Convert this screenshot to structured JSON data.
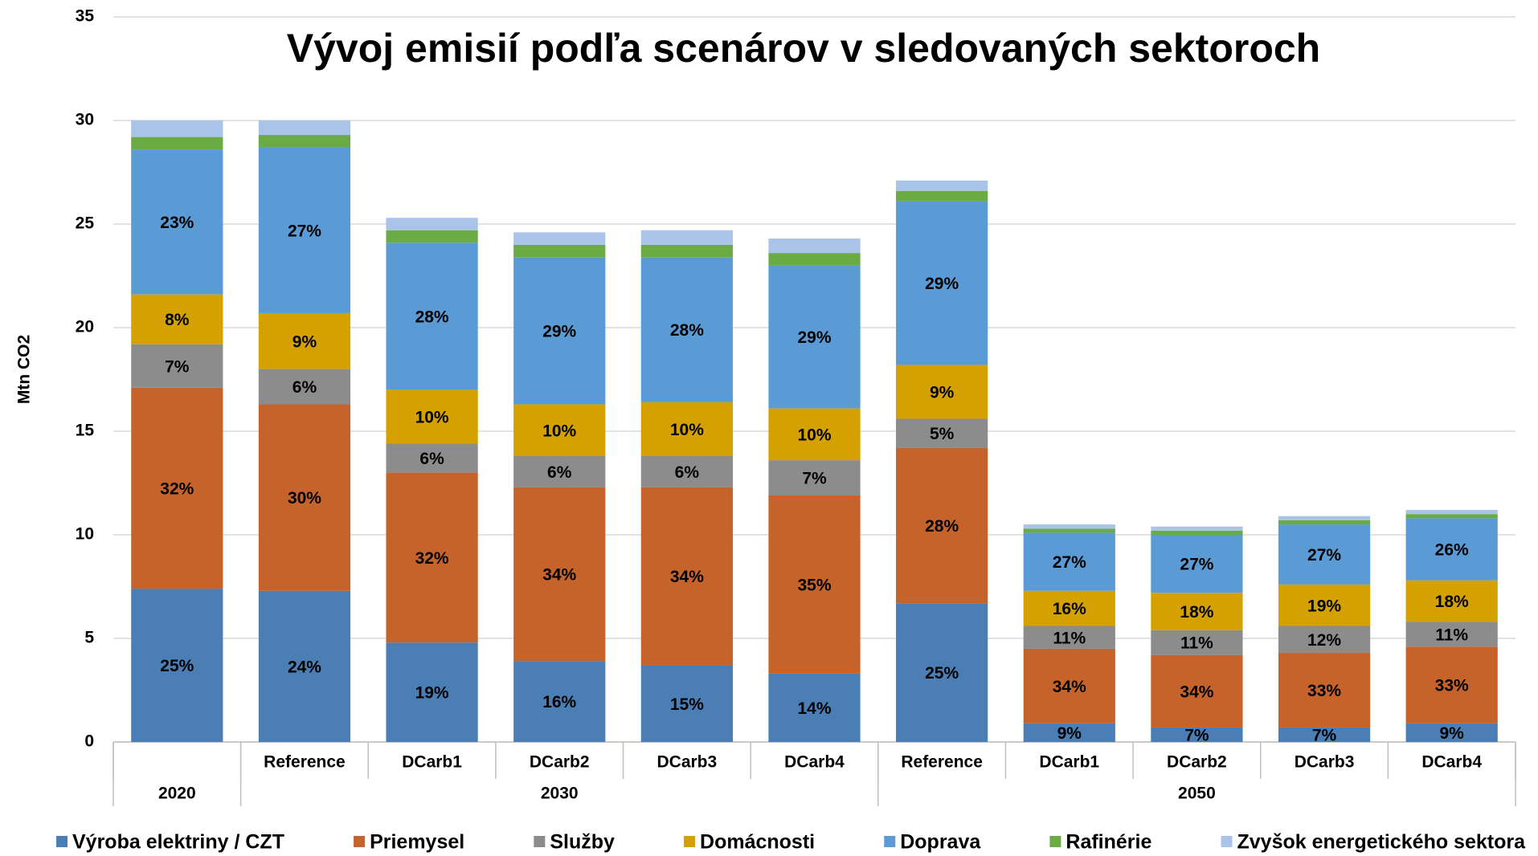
{
  "chart_data": {
    "type": "stacked-bar",
    "title": "Vývoj emisií podľa scenárov v sledovaných sektoroch",
    "y_label": "Mtn CO2",
    "categories": [
      null,
      "Reference",
      "DCarb1",
      "DCarb2",
      "DCarb3",
      "DCarb4",
      "Reference",
      "DCarb1",
      "DCarb2",
      "DCarb3",
      "DCarb4"
    ],
    "groups": [
      {
        "name": "2020",
        "size": 1
      },
      {
        "name": "2030",
        "size": 5
      },
      {
        "name": "2050",
        "size": 5
      }
    ],
    "ylim": [
      0,
      35
    ],
    "yticks": [
      0,
      5,
      10,
      15,
      20,
      25,
      30,
      35
    ],
    "grid": true,
    "series": [
      {
        "name": "Výroba elektriny / CZT",
        "color": "#4a7eb5",
        "values": [
          7.4,
          7.3,
          4.8,
          3.9,
          3.7,
          3.3,
          6.7,
          0.9,
          0.7,
          0.7,
          0.9
        ],
        "value_labels": [
          "25%",
          "24%",
          "19%",
          "16%",
          "15%",
          "14%",
          "25%",
          "9%",
          "7%",
          "7%",
          "9%"
        ]
      },
      {
        "name": "Priemysel",
        "color": "#c6632b",
        "values": [
          9.7,
          9.0,
          8.2,
          8.4,
          8.6,
          8.6,
          7.5,
          3.6,
          3.5,
          3.6,
          3.7
        ],
        "value_labels": [
          "32%",
          "30%",
          "32%",
          "34%",
          "34%",
          "35%",
          "28%",
          "34%",
          "34%",
          "33%",
          "33%"
        ]
      },
      {
        "name": "Služby",
        "color": "#8c8c8c",
        "values": [
          2.1,
          1.7,
          1.4,
          1.5,
          1.5,
          1.7,
          1.4,
          1.1,
          1.2,
          1.3,
          1.2
        ],
        "value_labels": [
          "7%",
          "6%",
          "6%",
          "6%",
          "6%",
          "7%",
          "5%",
          "11%",
          "11%",
          "12%",
          "11%"
        ]
      },
      {
        "name": "Domácnosti",
        "color": "#d4a100",
        "values": [
          2.4,
          2.7,
          2.6,
          2.5,
          2.6,
          2.5,
          2.6,
          1.7,
          1.8,
          2.0,
          2.0
        ],
        "value_labels": [
          "8%",
          "9%",
          "10%",
          "10%",
          "10%",
          "10%",
          "9%",
          "16%",
          "18%",
          "19%",
          "18%"
        ]
      },
      {
        "name": "Doprava",
        "color": "#5b9bd5",
        "values": [
          7.0,
          8.0,
          7.1,
          7.1,
          7.0,
          6.9,
          7.9,
          2.8,
          2.8,
          2.9,
          3.0
        ],
        "value_labels": [
          "23%",
          "27%",
          "28%",
          "29%",
          "28%",
          "29%",
          "29%",
          "27%",
          "27%",
          "27%",
          "26%"
        ]
      },
      {
        "name": "Rafinérie",
        "color": "#6aab46",
        "values": [
          0.6,
          0.6,
          0.6,
          0.6,
          0.6,
          0.6,
          0.5,
          0.2,
          0.2,
          0.2,
          0.2
        ]
      },
      {
        "name": "Zvyšok energetického sektora",
        "color": "#a9c4e8",
        "values": [
          0.8,
          0.7,
          0.6,
          0.6,
          0.7,
          0.7,
          0.5,
          0.2,
          0.2,
          0.2,
          0.2
        ]
      }
    ]
  }
}
